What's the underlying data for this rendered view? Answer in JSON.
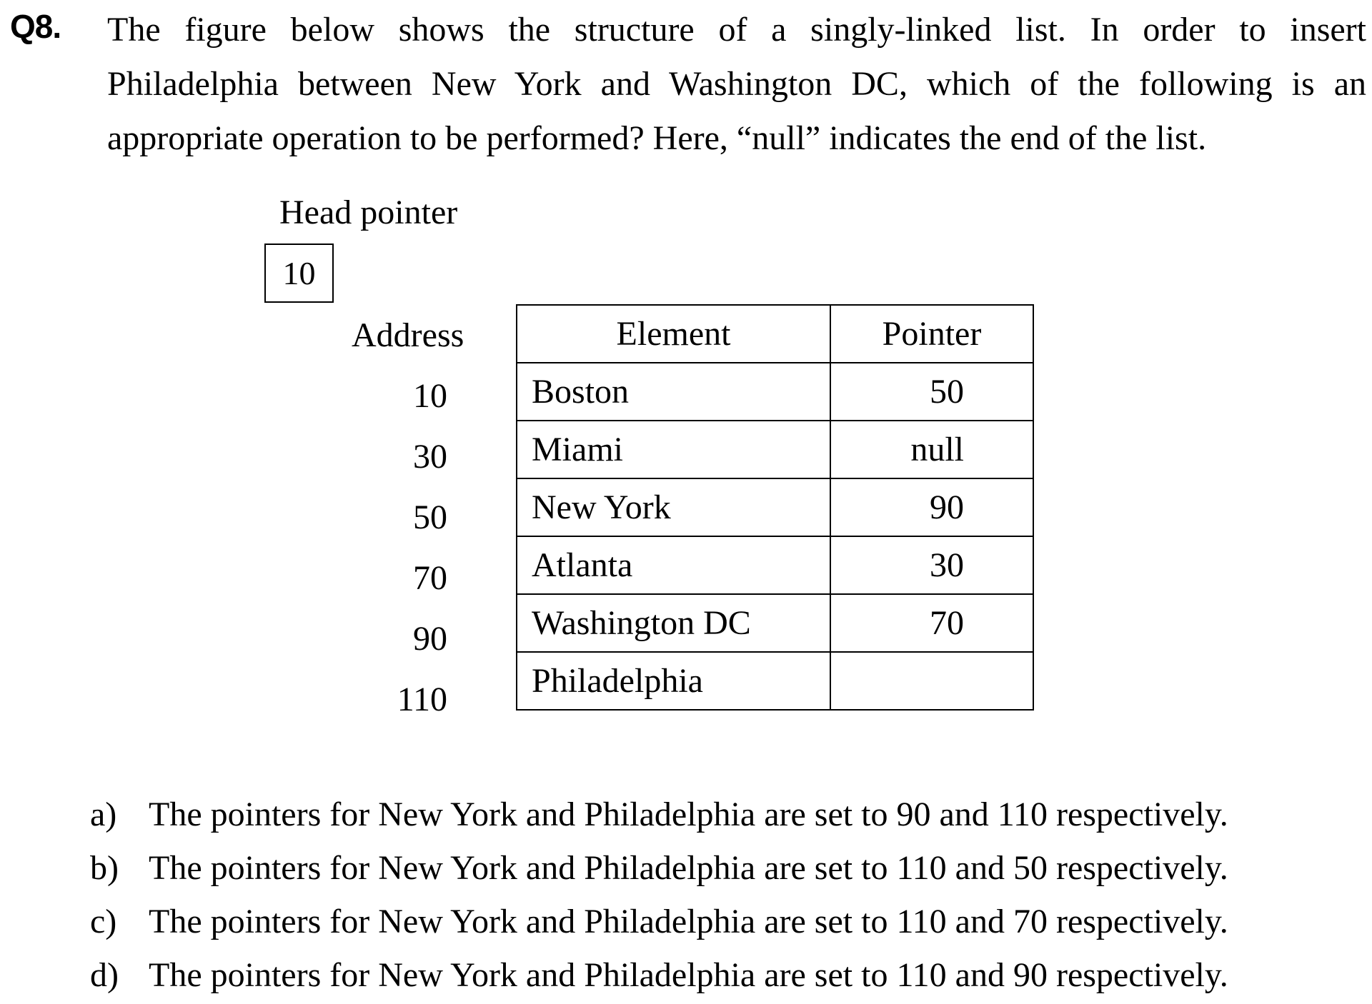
{
  "question": {
    "number": "Q8.",
    "lines": [
      "The figure below shows the structure of a singly-linked list.   In order to insert",
      "Philadelphia between New York and Washington DC, which of the following is an",
      "appropriate operation to be performed?    Here, “null” indicates the end of the list."
    ]
  },
  "figure": {
    "head_pointer_label": "Head pointer",
    "head_pointer_value": "10",
    "address_header": "Address",
    "element_header": "Element",
    "pointer_header": "Pointer",
    "rows": [
      {
        "address": "10",
        "element": "Boston",
        "pointer": "50"
      },
      {
        "address": "30",
        "element": "Miami",
        "pointer": "null"
      },
      {
        "address": "50",
        "element": "New York",
        "pointer": "90"
      },
      {
        "address": "70",
        "element": "Atlanta",
        "pointer": "30"
      },
      {
        "address": "90",
        "element": "Washington DC",
        "pointer": "70"
      },
      {
        "address": "110",
        "element": "Philadelphia",
        "pointer": ""
      }
    ]
  },
  "options": [
    {
      "letter": "a)",
      "text": "The pointers for New York and Philadelphia are set to 90 and 110 respectively."
    },
    {
      "letter": "b)",
      "text": "The pointers for New York and Philadelphia are set to 110 and 50 respectively."
    },
    {
      "letter": "c)",
      "text": "The pointers for New York and Philadelphia are set to 110 and 70 respectively."
    },
    {
      "letter": "d)",
      "text": "The pointers for New York and Philadelphia are set to 110 and 90 respectively."
    }
  ]
}
